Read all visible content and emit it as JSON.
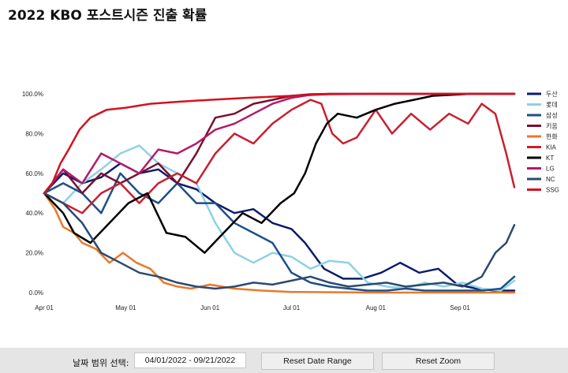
{
  "title": "2022 KBO 포스트시즌 진출 확률",
  "controls": {
    "range_label": "날짜 범위 선택:",
    "range_value": "04/01/2022 - 09/21/2022",
    "reset_range_label": "Reset Date Range",
    "reset_zoom_label": "Reset Zoom"
  },
  "chart_data": {
    "type": "line",
    "title": "2022 KBO 포스트시즌 진출 확률",
    "x_range": [
      "2022-04-01",
      "2022-09-21"
    ],
    "x_ticks": [
      {
        "date": "2022-04-01",
        "label": "Apr 01"
      },
      {
        "date": "2022-05-01",
        "label": "May 01"
      },
      {
        "date": "2022-06-01",
        "label": "Jun 01"
      },
      {
        "date": "2022-07-01",
        "label": "Jul 01"
      },
      {
        "date": "2022-08-01",
        "label": "Aug 01"
      },
      {
        "date": "2022-09-01",
        "label": "Sep 01"
      }
    ],
    "ylim": [
      0,
      100
    ],
    "y_ticks": [
      0,
      20,
      40,
      60,
      80,
      100
    ],
    "y_tick_labels": [
      "0.0%",
      "20.0%",
      "40.0%",
      "60.0%",
      "80.0%",
      "100.0%"
    ],
    "grid": false,
    "legend": "right",
    "series": [
      {
        "name": "두산",
        "color": "#0c1c6b",
        "points": [
          [
            "2022-04-01",
            50
          ],
          [
            "2022-04-08",
            60
          ],
          [
            "2022-04-15",
            55
          ],
          [
            "2022-04-22",
            58
          ],
          [
            "2022-04-29",
            65
          ],
          [
            "2022-05-06",
            60
          ],
          [
            "2022-05-13",
            62
          ],
          [
            "2022-05-20",
            55
          ],
          [
            "2022-05-27",
            52
          ],
          [
            "2022-06-03",
            45
          ],
          [
            "2022-06-10",
            40
          ],
          [
            "2022-06-17",
            42
          ],
          [
            "2022-06-24",
            35
          ],
          [
            "2022-07-01",
            32
          ],
          [
            "2022-07-06",
            25
          ],
          [
            "2022-07-13",
            12
          ],
          [
            "2022-07-20",
            7
          ],
          [
            "2022-07-27",
            7
          ],
          [
            "2022-08-03",
            10
          ],
          [
            "2022-08-10",
            15
          ],
          [
            "2022-08-17",
            10
          ],
          [
            "2022-08-24",
            12
          ],
          [
            "2022-08-31",
            4
          ],
          [
            "2022-09-07",
            2
          ],
          [
            "2022-09-14",
            1
          ],
          [
            "2022-09-21",
            1
          ]
        ]
      },
      {
        "name": "롯데",
        "color": "#8ed2e4",
        "points": [
          [
            "2022-04-01",
            50
          ],
          [
            "2022-04-08",
            45
          ],
          [
            "2022-04-15",
            55
          ],
          [
            "2022-04-22",
            62
          ],
          [
            "2022-04-29",
            70
          ],
          [
            "2022-05-06",
            74
          ],
          [
            "2022-05-13",
            65
          ],
          [
            "2022-05-20",
            60
          ],
          [
            "2022-05-27",
            55
          ],
          [
            "2022-06-03",
            35
          ],
          [
            "2022-06-10",
            20
          ],
          [
            "2022-06-17",
            15
          ],
          [
            "2022-06-24",
            20
          ],
          [
            "2022-07-01",
            18
          ],
          [
            "2022-07-08",
            12
          ],
          [
            "2022-07-15",
            16
          ],
          [
            "2022-07-22",
            15
          ],
          [
            "2022-07-29",
            5
          ],
          [
            "2022-08-05",
            3
          ],
          [
            "2022-08-12",
            2
          ],
          [
            "2022-08-19",
            5
          ],
          [
            "2022-08-26",
            3
          ],
          [
            "2022-09-02",
            5
          ],
          [
            "2022-09-09",
            2
          ],
          [
            "2022-09-16",
            1
          ],
          [
            "2022-09-21",
            6
          ]
        ]
      },
      {
        "name": "삼성",
        "color": "#1e4f87",
        "points": [
          [
            "2022-04-01",
            50
          ],
          [
            "2022-04-08",
            55
          ],
          [
            "2022-04-15",
            50
          ],
          [
            "2022-04-22",
            40
          ],
          [
            "2022-04-29",
            60
          ],
          [
            "2022-05-06",
            50
          ],
          [
            "2022-05-13",
            45
          ],
          [
            "2022-05-20",
            55
          ],
          [
            "2022-05-27",
            45
          ],
          [
            "2022-06-03",
            45
          ],
          [
            "2022-06-10",
            35
          ],
          [
            "2022-06-17",
            30
          ],
          [
            "2022-06-24",
            25
          ],
          [
            "2022-07-01",
            10
          ],
          [
            "2022-07-08",
            5
          ],
          [
            "2022-07-15",
            3
          ],
          [
            "2022-07-22",
            2
          ],
          [
            "2022-07-29",
            1
          ],
          [
            "2022-08-05",
            1
          ],
          [
            "2022-08-12",
            2
          ],
          [
            "2022-08-19",
            1
          ],
          [
            "2022-08-26",
            1
          ],
          [
            "2022-09-02",
            1
          ],
          [
            "2022-09-09",
            1
          ],
          [
            "2022-09-16",
            2
          ],
          [
            "2022-09-21",
            8
          ]
        ]
      },
      {
        "name": "키움",
        "color": "#7a0f2e",
        "points": [
          [
            "2022-04-01",
            50
          ],
          [
            "2022-04-08",
            62
          ],
          [
            "2022-04-15",
            50
          ],
          [
            "2022-04-22",
            60
          ],
          [
            "2022-04-29",
            55
          ],
          [
            "2022-05-06",
            60
          ],
          [
            "2022-05-13",
            65
          ],
          [
            "2022-05-20",
            55
          ],
          [
            "2022-05-27",
            70
          ],
          [
            "2022-06-03",
            88
          ],
          [
            "2022-06-10",
            90
          ],
          [
            "2022-06-17",
            95
          ],
          [
            "2022-06-24",
            97
          ],
          [
            "2022-07-01",
            99
          ],
          [
            "2022-07-08",
            99.8
          ],
          [
            "2022-07-15",
            100
          ],
          [
            "2022-08-01",
            100
          ],
          [
            "2022-09-01",
            100
          ],
          [
            "2022-09-21",
            100
          ]
        ]
      },
      {
        "name": "한화",
        "color": "#e8792c",
        "points": [
          [
            "2022-04-01",
            50
          ],
          [
            "2022-04-05",
            42
          ],
          [
            "2022-04-08",
            33
          ],
          [
            "2022-04-12",
            30
          ],
          [
            "2022-04-15",
            25
          ],
          [
            "2022-04-20",
            22
          ],
          [
            "2022-04-25",
            15
          ],
          [
            "2022-04-30",
            20
          ],
          [
            "2022-05-05",
            15
          ],
          [
            "2022-05-10",
            12
          ],
          [
            "2022-05-15",
            5
          ],
          [
            "2022-05-20",
            3
          ],
          [
            "2022-05-25",
            2
          ],
          [
            "2022-06-01",
            4
          ],
          [
            "2022-06-10",
            2
          ],
          [
            "2022-06-20",
            1
          ],
          [
            "2022-07-01",
            0.3
          ],
          [
            "2022-08-01",
            0
          ],
          [
            "2022-09-01",
            0
          ],
          [
            "2022-09-21",
            0
          ]
        ]
      },
      {
        "name": "KIA",
        "color": "#c8202f",
        "points": [
          [
            "2022-04-01",
            50
          ],
          [
            "2022-04-08",
            45
          ],
          [
            "2022-04-15",
            40
          ],
          [
            "2022-04-22",
            50
          ],
          [
            "2022-04-29",
            55
          ],
          [
            "2022-05-06",
            45
          ],
          [
            "2022-05-13",
            55
          ],
          [
            "2022-05-20",
            60
          ],
          [
            "2022-05-27",
            55
          ],
          [
            "2022-06-03",
            70
          ],
          [
            "2022-06-10",
            80
          ],
          [
            "2022-06-17",
            75
          ],
          [
            "2022-06-24",
            85
          ],
          [
            "2022-07-01",
            92
          ],
          [
            "2022-07-08",
            97
          ],
          [
            "2022-07-12",
            95
          ],
          [
            "2022-07-16",
            80
          ],
          [
            "2022-07-20",
            75
          ],
          [
            "2022-07-25",
            78
          ],
          [
            "2022-08-01",
            92
          ],
          [
            "2022-08-07",
            80
          ],
          [
            "2022-08-14",
            90
          ],
          [
            "2022-08-21",
            82
          ],
          [
            "2022-08-28",
            90
          ],
          [
            "2022-09-04",
            85
          ],
          [
            "2022-09-09",
            95
          ],
          [
            "2022-09-14",
            90
          ],
          [
            "2022-09-18",
            70
          ],
          [
            "2022-09-21",
            53
          ]
        ]
      },
      {
        "name": "KT",
        "color": "#000000",
        "points": [
          [
            "2022-04-01",
            50
          ],
          [
            "2022-04-08",
            40
          ],
          [
            "2022-04-12",
            30
          ],
          [
            "2022-04-18",
            25
          ],
          [
            "2022-04-25",
            35
          ],
          [
            "2022-05-02",
            45
          ],
          [
            "2022-05-09",
            50
          ],
          [
            "2022-05-16",
            30
          ],
          [
            "2022-05-23",
            28
          ],
          [
            "2022-05-30",
            20
          ],
          [
            "2022-06-06",
            30
          ],
          [
            "2022-06-13",
            40
          ],
          [
            "2022-06-20",
            35
          ],
          [
            "2022-06-27",
            45
          ],
          [
            "2022-07-02",
            50
          ],
          [
            "2022-07-06",
            60
          ],
          [
            "2022-07-10",
            75
          ],
          [
            "2022-07-14",
            85
          ],
          [
            "2022-07-18",
            90
          ],
          [
            "2022-07-25",
            88
          ],
          [
            "2022-08-01",
            92
          ],
          [
            "2022-08-08",
            95
          ],
          [
            "2022-08-15",
            97
          ],
          [
            "2022-08-22",
            99
          ],
          [
            "2022-08-29",
            99.5
          ],
          [
            "2022-09-05",
            100
          ],
          [
            "2022-09-21",
            100
          ]
        ]
      },
      {
        "name": "LG",
        "color": "#b21b6b",
        "points": [
          [
            "2022-04-01",
            50
          ],
          [
            "2022-04-08",
            62
          ],
          [
            "2022-04-15",
            55
          ],
          [
            "2022-04-22",
            70
          ],
          [
            "2022-04-29",
            65
          ],
          [
            "2022-05-06",
            60
          ],
          [
            "2022-05-13",
            72
          ],
          [
            "2022-05-20",
            70
          ],
          [
            "2022-05-27",
            75
          ],
          [
            "2022-06-03",
            82
          ],
          [
            "2022-06-10",
            85
          ],
          [
            "2022-06-17",
            90
          ],
          [
            "2022-06-24",
            95
          ],
          [
            "2022-07-01",
            98
          ],
          [
            "2022-07-08",
            99.5
          ],
          [
            "2022-07-15",
            100
          ],
          [
            "2022-08-01",
            100
          ],
          [
            "2022-09-01",
            100
          ],
          [
            "2022-09-21",
            100
          ]
        ]
      },
      {
        "name": "NC",
        "color": "#2c4a6e",
        "points": [
          [
            "2022-04-01",
            50
          ],
          [
            "2022-04-08",
            45
          ],
          [
            "2022-04-15",
            35
          ],
          [
            "2022-04-22",
            20
          ],
          [
            "2022-04-29",
            15
          ],
          [
            "2022-05-06",
            10
          ],
          [
            "2022-05-13",
            8
          ],
          [
            "2022-05-20",
            5
          ],
          [
            "2022-05-27",
            3
          ],
          [
            "2022-06-03",
            2
          ],
          [
            "2022-06-10",
            3
          ],
          [
            "2022-06-17",
            5
          ],
          [
            "2022-06-24",
            4
          ],
          [
            "2022-07-01",
            6
          ],
          [
            "2022-07-08",
            8
          ],
          [
            "2022-07-15",
            5
          ],
          [
            "2022-07-22",
            3
          ],
          [
            "2022-07-29",
            4
          ],
          [
            "2022-08-05",
            5
          ],
          [
            "2022-08-12",
            3
          ],
          [
            "2022-08-19",
            4
          ],
          [
            "2022-08-26",
            5
          ],
          [
            "2022-09-02",
            3
          ],
          [
            "2022-09-09",
            8
          ],
          [
            "2022-09-14",
            20
          ],
          [
            "2022-09-18",
            25
          ],
          [
            "2022-09-21",
            34
          ]
        ]
      },
      {
        "name": "SSG",
        "color": "#d4121f",
        "points": [
          [
            "2022-04-01",
            50
          ],
          [
            "2022-04-04",
            55
          ],
          [
            "2022-04-07",
            65
          ],
          [
            "2022-04-10",
            72
          ],
          [
            "2022-04-14",
            82
          ],
          [
            "2022-04-18",
            88
          ],
          [
            "2022-04-24",
            92
          ],
          [
            "2022-05-01",
            93
          ],
          [
            "2022-05-10",
            95
          ],
          [
            "2022-05-20",
            96
          ],
          [
            "2022-06-01",
            97
          ],
          [
            "2022-06-15",
            98
          ],
          [
            "2022-07-01",
            99
          ],
          [
            "2022-07-15",
            99.8
          ],
          [
            "2022-08-01",
            100
          ],
          [
            "2022-09-01",
            100
          ],
          [
            "2022-09-21",
            100
          ]
        ]
      }
    ]
  }
}
